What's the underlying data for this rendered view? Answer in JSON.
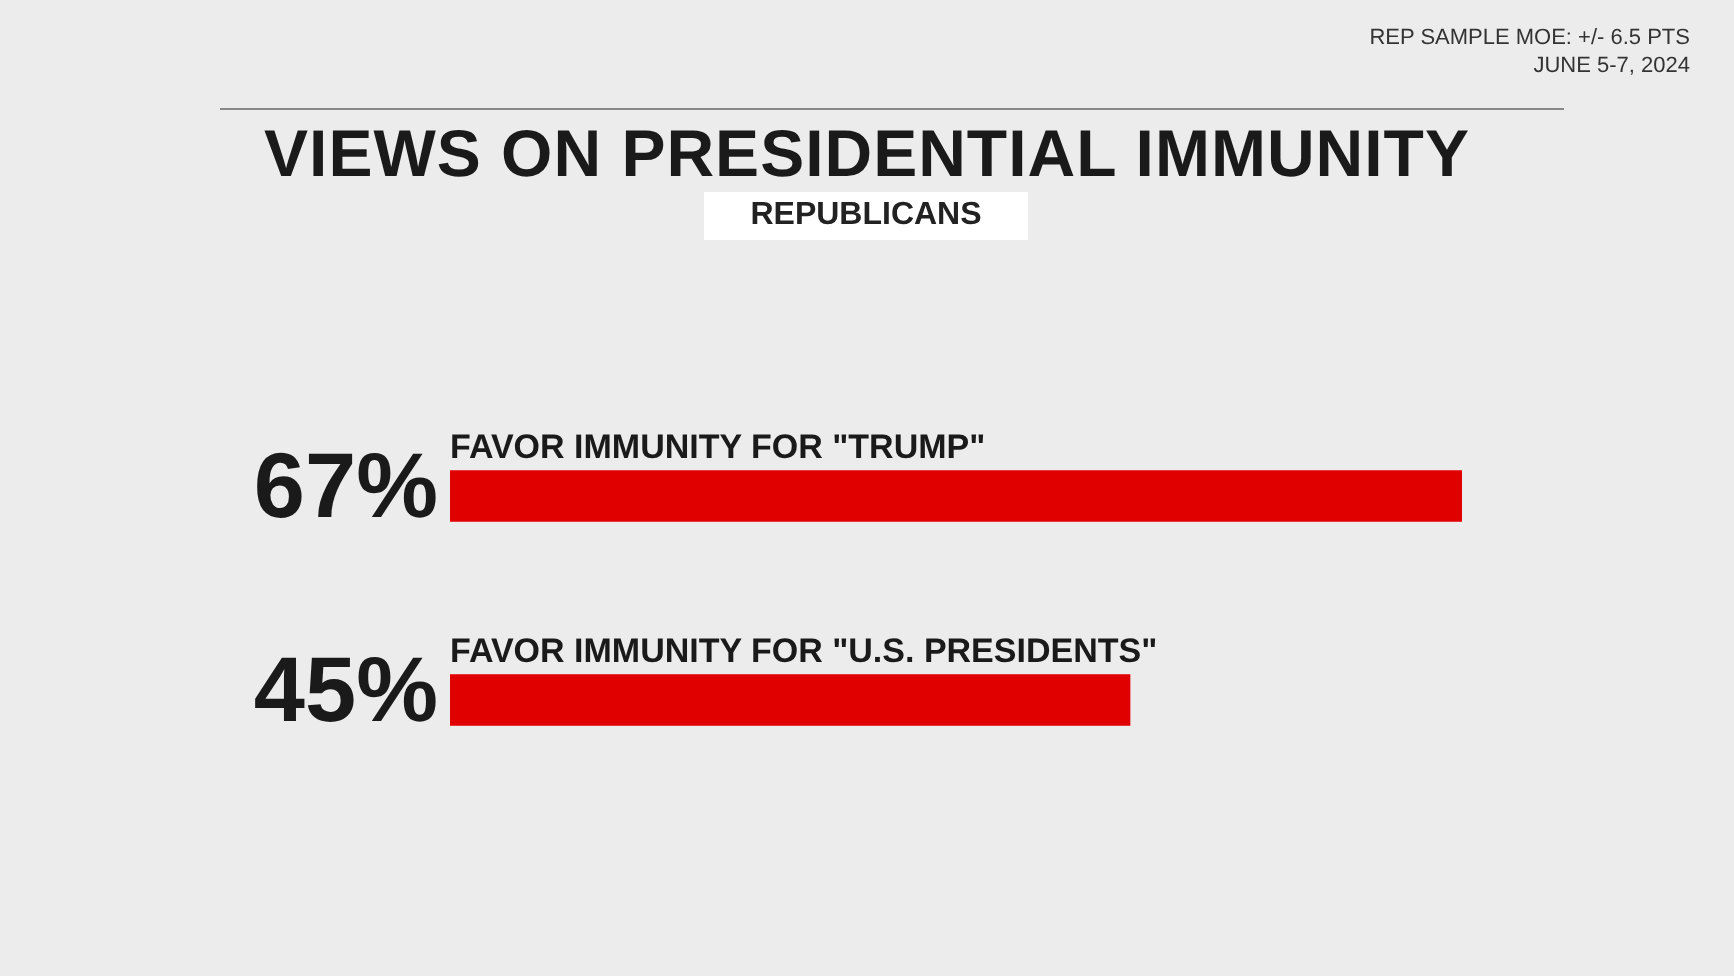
{
  "chart_data": {
    "type": "bar",
    "orientation": "horizontal",
    "title": "VIEWS ON PRESIDENTIAL IMMUNITY",
    "subtitle": "REPUBLICANS",
    "annotations": [
      "REP SAMPLE MOE: +/- 6.5 PTS",
      "JUNE 5-7, 2024"
    ],
    "categories": [
      "FAVOR IMMUNITY FOR \"TRUMP\"",
      "FAVOR IMMUNITY FOR \"U.S. PRESIDENTS\""
    ],
    "values": [
      67,
      45
    ],
    "value_labels": [
      "67%",
      "45%"
    ],
    "color": "#e00000"
  }
}
